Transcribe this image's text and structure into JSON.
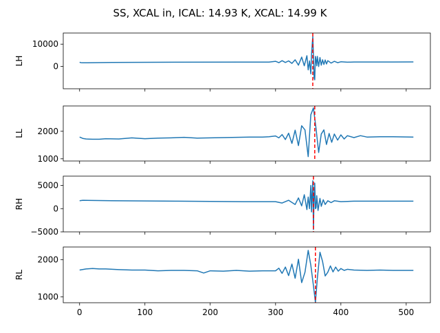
{
  "figure": {
    "title": "SS, XCAL in, ICAL: 14.93 K, XCAL: 14.99 K",
    "line_color": "#1f77b4",
    "marker_color": "#ff0000"
  },
  "chart_data": [
    {
      "type": "line",
      "ylabel": "LH",
      "xlim": [
        -25,
        537
      ],
      "ylim": [
        -10000,
        15000
      ],
      "yticks": [
        0,
        10000
      ],
      "ytick_labels": [
        "0",
        "10000"
      ],
      "show_xticklabels": false,
      "marker_x": 357,
      "series": [
        {
          "x": [
            0,
            2,
            5,
            50,
            150,
            250,
            290,
            300,
            305,
            310,
            315,
            320,
            325,
            330,
            335,
            340,
            344,
            348,
            350,
            352,
            354,
            355,
            356,
            357,
            358,
            359,
            360,
            361,
            362,
            363,
            364,
            366,
            368,
            370,
            372,
            374,
            376,
            378,
            380,
            385,
            390,
            395,
            400,
            410,
            420,
            450,
            480,
            511
          ],
          "y": [
            1900,
            1700,
            1650,
            1800,
            1900,
            1950,
            1950,
            2300,
            1700,
            2600,
            1800,
            2500,
            1400,
            3000,
            600,
            4200,
            300,
            4800,
            -1500,
            2500,
            -3300,
            5200,
            9500,
            13500,
            5000,
            -5200,
            -6000,
            4500,
            2800,
            300,
            4500,
            0,
            4000,
            600,
            3000,
            900,
            2900,
            1100,
            2600,
            1500,
            2300,
            1700,
            2100,
            1900,
            2000,
            2000,
            2000,
            2050
          ]
        }
      ]
    },
    {
      "type": "line",
      "ylabel": "LL",
      "xlim": [
        -25,
        537
      ],
      "ylim": [
        920,
        2920
      ],
      "yticks": [
        1000,
        2000
      ],
      "ytick_labels": [
        "1000",
        "2000"
      ],
      "show_xticklabels": false,
      "marker_x": 360,
      "series": [
        {
          "x": [
            0,
            5,
            10,
            20,
            30,
            40,
            60,
            80,
            100,
            120,
            140,
            160,
            180,
            200,
            220,
            240,
            260,
            280,
            290,
            300,
            305,
            310,
            315,
            320,
            325,
            330,
            335,
            340,
            345,
            350,
            354,
            358,
            362,
            366,
            370,
            374,
            378,
            382,
            386,
            390,
            395,
            400,
            405,
            410,
            420,
            430,
            440,
            460,
            480,
            511
          ],
          "y": [
            1790,
            1740,
            1720,
            1710,
            1710,
            1730,
            1720,
            1760,
            1730,
            1750,
            1760,
            1780,
            1750,
            1760,
            1770,
            1780,
            1790,
            1790,
            1800,
            1830,
            1760,
            1880,
            1700,
            1930,
            1560,
            2040,
            1480,
            2200,
            2050,
            1080,
            2600,
            2850,
            2100,
            1230,
            1900,
            2050,
            1520,
            1920,
            1600,
            1900,
            1680,
            1870,
            1720,
            1840,
            1770,
            1840,
            1790,
            1800,
            1800,
            1790
          ]
        }
      ]
    },
    {
      "type": "line",
      "ylabel": "RH",
      "xlim": [
        -25,
        537
      ],
      "ylim": [
        -5000,
        7000
      ],
      "yticks": [
        -5000,
        0,
        5000
      ],
      "ytick_labels": [
        "−5000",
        "0",
        "5000"
      ],
      "show_xticklabels": false,
      "marker_x": 358,
      "series": [
        {
          "x": [
            0,
            5,
            50,
            150,
            250,
            300,
            310,
            320,
            330,
            335,
            340,
            344,
            348,
            350,
            352,
            354,
            355,
            356,
            357,
            358,
            359,
            360,
            361,
            362,
            363,
            365,
            368,
            370,
            373,
            376,
            380,
            385,
            390,
            400,
            420,
            450,
            511
          ],
          "y": [
            1700,
            1800,
            1700,
            1600,
            1500,
            1500,
            1200,
            1800,
            900,
            2300,
            600,
            3000,
            -200,
            2500,
            0,
            5000,
            -700,
            3000,
            6000,
            -4500,
            2800,
            5500,
            0,
            200,
            2800,
            -400,
            2200,
            500,
            1900,
            900,
            1700,
            1300,
            1700,
            1500,
            1600,
            1600,
            1600
          ]
        }
      ]
    },
    {
      "type": "line",
      "ylabel": "RL",
      "xlim": [
        -25,
        537
      ],
      "ylim": [
        840,
        2340
      ],
      "yticks": [
        1000,
        2000
      ],
      "ytick_labels": [
        "1000",
        "2000"
      ],
      "show_xticklabels": true,
      "xticks": [
        0,
        100,
        200,
        300,
        400,
        500
      ],
      "xtick_labels": [
        "0",
        "100",
        "200",
        "300",
        "400",
        "500"
      ],
      "marker_x": 361,
      "series": [
        {
          "x": [
            0,
            10,
            20,
            30,
            40,
            60,
            80,
            100,
            120,
            140,
            160,
            180,
            190,
            200,
            220,
            240,
            260,
            280,
            300,
            305,
            310,
            315,
            320,
            325,
            330,
            335,
            340,
            345,
            350,
            354,
            358,
            361,
            364,
            368,
            372,
            376,
            380,
            384,
            388,
            392,
            396,
            400,
            405,
            410,
            420,
            440,
            460,
            480,
            511
          ],
          "y": [
            1720,
            1750,
            1760,
            1750,
            1750,
            1730,
            1720,
            1720,
            1700,
            1710,
            1710,
            1700,
            1640,
            1700,
            1690,
            1710,
            1690,
            1700,
            1700,
            1770,
            1630,
            1800,
            1570,
            1880,
            1500,
            2010,
            1380,
            1660,
            2250,
            1850,
            1300,
            850,
            1500,
            2200,
            1950,
            1560,
            1660,
            1830,
            1670,
            1800,
            1690,
            1760,
            1710,
            1740,
            1720,
            1710,
            1720,
            1710,
            1710
          ]
        }
      ]
    }
  ]
}
